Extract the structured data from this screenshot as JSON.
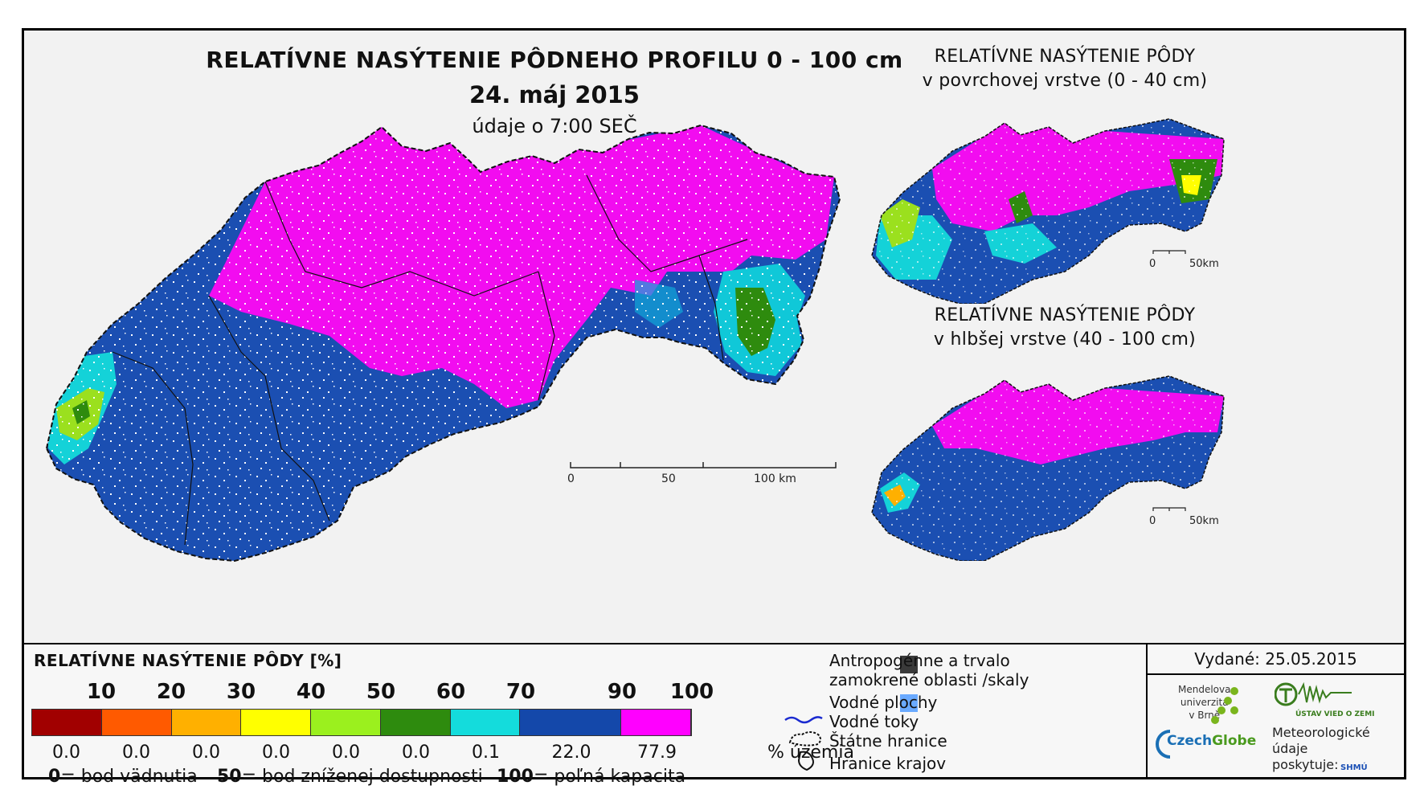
{
  "main_title": "RELATÍVNE NASÝTENIE PÔDNEHO PROFILU 0 - 100 cm",
  "date": "24. máj 2015",
  "time_note": "údaje o 7:00 SEČ",
  "inset_top": {
    "title_line1": "RELATÍVNE NASÝTENIE PÔDY",
    "title_line2": "v povrchovej vrstve (0 - 40 cm)",
    "scale_start": "0",
    "scale_end": "50km"
  },
  "inset_bottom": {
    "title_line1": "RELATÍVNE NASÝTENIE PÔDY",
    "title_line2": "v hlbšej vrstve (40 - 100 cm)",
    "scale_start": "0",
    "scale_end": "50km"
  },
  "main_scale": {
    "start": "0",
    "mid": "50",
    "end": "100 km"
  },
  "legend": {
    "title": "RELATÍVNE NASÝTENIE PÔDY [%]",
    "ticks": [
      "10",
      "20",
      "30",
      "40",
      "50",
      "60",
      "70",
      "90",
      "100"
    ],
    "colors": [
      "#a10000",
      "#ff5a00",
      "#ffb000",
      "#ffff00",
      "#9bf01e",
      "#2e8b0e",
      "#14dcdc",
      "#1448aa",
      "#ff00ff"
    ],
    "percentages": [
      "0.0",
      "0.0",
      "0.0",
      "0.0",
      "0.0",
      "0.0",
      "0.1",
      "22.0",
      "77.9"
    ],
    "percent_unit": "% územia",
    "defs": [
      {
        "value": "0",
        "text": "= bod vädnutia"
      },
      {
        "value": "50",
        "text": "= bod zníženej dostupnosti"
      },
      {
        "value": "100",
        "text": "= poľná kapacita"
      }
    ]
  },
  "symbols": {
    "anthropogenic_line1": "Antropogénne a trvalo",
    "anthropogenic_line2": "zamokrené oblasti /skaly",
    "water_bodies": "Vodné plochy",
    "streams": "Vodné toky",
    "state_border": "Štátne hranice",
    "region_border": "Hranice krajov"
  },
  "colors": {
    "anthropogenic": "#3a3a3a",
    "water_bodies": "#6aaaff",
    "streams": "#1a2ad0"
  },
  "info": {
    "issued": "Vydané: 25.05.2015",
    "mendel_1": "Mendelova",
    "mendel_2": "univerzita",
    "mendel_3": "v Brně",
    "czechglobe_a": "Czech",
    "czechglobe_b": "Globe",
    "uvz": "ÚSTAV VIED O ZEMI",
    "meteo_1": "Meteorologické",
    "meteo_2": "údaje",
    "meteo_3": "poskytuje:",
    "shmu": "SHMÚ"
  }
}
